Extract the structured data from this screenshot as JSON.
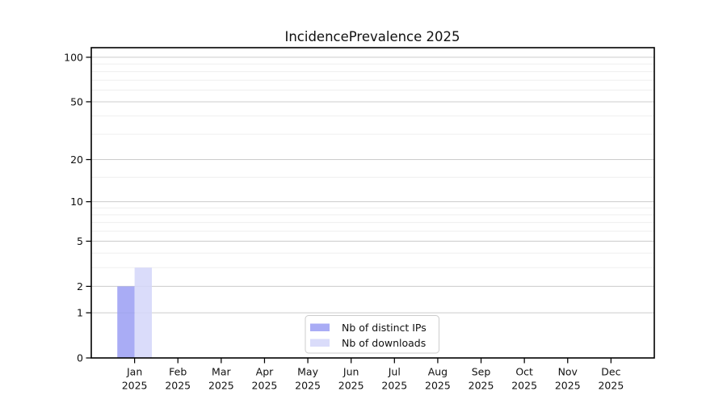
{
  "figure": {
    "background_color": "#ffffff"
  },
  "chart_data": {
    "type": "bar",
    "title": "IncidencePrevalence 2025",
    "categories": [
      "Jan",
      "Feb",
      "Mar",
      "Apr",
      "May",
      "Jun",
      "Jul",
      "Aug",
      "Sep",
      "Oct",
      "Nov",
      "Dec"
    ],
    "year_label": "2025",
    "series": [
      {
        "name": "Nb of distinct IPs",
        "color": "#9a9ef3",
        "values": [
          2,
          0,
          0,
          0,
          0,
          0,
          0,
          0,
          0,
          0,
          0,
          0
        ]
      },
      {
        "name": "Nb of downloads",
        "color": "#d4d6f9",
        "values": [
          3,
          0,
          0,
          0,
          0,
          0,
          0,
          0,
          0,
          0,
          0,
          0
        ]
      }
    ],
    "xlabel": "",
    "ylabel": "",
    "y_axis": {
      "scale": "log1p",
      "ticks": [
        0,
        1,
        2,
        5,
        10,
        20,
        50,
        100
      ],
      "minor_gridlines": [
        3,
        4,
        6,
        7,
        8,
        9,
        15,
        30,
        40,
        60,
        70,
        80,
        90
      ],
      "ylim": [
        0,
        116
      ]
    },
    "grid": "horizontal",
    "legend_position": "lower center (inside axes)"
  },
  "style": {
    "major_grid_color": "#cccccc",
    "minor_grid_color": "#efefef",
    "spine_color": "#000000",
    "bar_opacity": 0.85,
    "legend_border_color": "#cccccc",
    "legend_background": "#ffffff"
  }
}
